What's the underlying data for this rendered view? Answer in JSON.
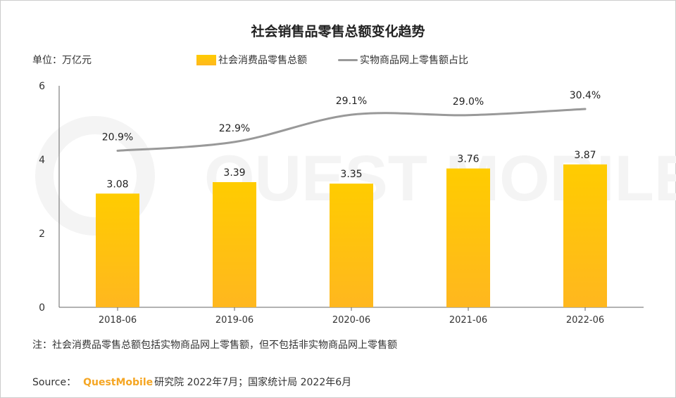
{
  "title": "社会销售品零售总额变化趋势",
  "unit_label": "单位：万亿元",
  "note": "注：社会消费品零售总额包括实物商品网上零售额，但不包括非实物商品网上零售额",
  "source": {
    "prefix": "Source：",
    "brand": "QuestMobile",
    "suffix": "研究院 2022年7月；国家统计局 2022年6月"
  },
  "watermark": "QUEST MOBILE",
  "colors": {
    "bar_top": "#ffcc00",
    "bar_bottom": "#ffb71f",
    "line": "#999999",
    "axis": "#666666",
    "brand": "#f5a623"
  },
  "chart_data": {
    "type": "bar",
    "categories": [
      "2018-06",
      "2019-06",
      "2020-06",
      "2021-06",
      "2022-06"
    ],
    "ylim": [
      0,
      6
    ],
    "yticks": [
      0,
      2,
      4,
      6
    ],
    "grid": false,
    "legend_position": "top-center",
    "series": [
      {
        "name": "社会消费品零售总额",
        "type": "bar",
        "values": [
          3.08,
          3.39,
          3.35,
          3.76,
          3.87
        ],
        "labels": [
          "3.08",
          "3.39",
          "3.35",
          "3.76",
          "3.87"
        ]
      },
      {
        "name": "实物商品网上零售额占比",
        "type": "line",
        "values": [
          20.9,
          22.9,
          29.1,
          29.0,
          30.4
        ],
        "labels": [
          "20.9%",
          "22.9%",
          "29.1%",
          "29.0%",
          "30.4%"
        ]
      }
    ]
  }
}
